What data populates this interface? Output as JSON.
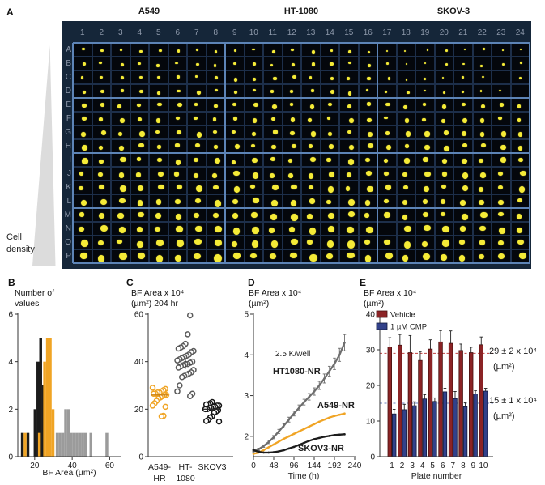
{
  "figure": {
    "panel_a": {
      "label": "A",
      "cell_line_titles": [
        "A549",
        "HT-1080",
        "SKOV-3"
      ],
      "cell_density_lines": [
        "Cell",
        "density"
      ],
      "plate": {
        "columns": [
          "1",
          "2",
          "3",
          "4",
          "5",
          "6",
          "7",
          "8",
          "9",
          "10",
          "11",
          "12",
          "13",
          "14",
          "15",
          "16",
          "17",
          "18",
          "19",
          "20",
          "21",
          "22",
          "23",
          "24"
        ],
        "rows": [
          "A",
          "B",
          "C",
          "D",
          "E",
          "F",
          "G",
          "H",
          "I",
          "J",
          "K",
          "L",
          "M",
          "N",
          "O",
          "P"
        ],
        "row_dot_radius": [
          1.7,
          1.9,
          2.0,
          2.1,
          2.5,
          2.6,
          2.7,
          2.8,
          3.1,
          3.2,
          3.3,
          3.4,
          3.7,
          3.8,
          3.9,
          4.1
        ],
        "missing_wells": [
          "C23",
          "D24",
          "N17"
        ],
        "col_group_size": 8,
        "row_group_size": 4,
        "colors": {
          "plate_bg": "#152639",
          "well_bg": "#04070c",
          "well_border": "#1d2f4a",
          "separator": "#5d84b6",
          "spheroid": "#f5eb37",
          "header_text": "#8e99ab"
        }
      }
    },
    "panel_labels": {
      "b": "B",
      "c": "C",
      "d": "D",
      "e": "E"
    }
  },
  "chart_data": [
    {
      "panel": "B",
      "type": "bar",
      "subtype": "histogram",
      "title_lines": [
        "Number of",
        "values"
      ],
      "xlabel": "BF Area (µm²)",
      "xlim": [
        11,
        65
      ],
      "ylim": [
        0,
        6
      ],
      "xticks": [
        20,
        40,
        60
      ],
      "yticks": [
        0,
        2,
        4,
        6
      ],
      "bin_width": 1.5,
      "series": [
        {
          "name": "HT-1080",
          "color": "#9b9b9b",
          "bins": [
            [
              32,
              1
            ],
            [
              33.5,
              1
            ],
            [
              35,
              1
            ],
            [
              36.5,
              2
            ],
            [
              38,
              2
            ],
            [
              39.5,
              1
            ],
            [
              41,
              1
            ],
            [
              42.5,
              1
            ],
            [
              44,
              1
            ],
            [
              45.5,
              1
            ],
            [
              47,
              1
            ],
            [
              50,
              1
            ],
            [
              58.5,
              1
            ]
          ]
        },
        {
          "name": "SKOV3",
          "color": "#1b1b1b",
          "bins": [
            [
              13.4,
              1
            ],
            [
              16.4,
              1
            ],
            [
              20.2,
              2
            ],
            [
              21.7,
              4
            ],
            [
              23.2,
              5
            ],
            [
              24.7,
              3
            ]
          ]
        },
        {
          "name": "A549",
          "color": "#f0a424",
          "bins": [
            [
              14.9,
              1
            ],
            [
              22.5,
              1
            ],
            [
              25.3,
              4
            ],
            [
              26.8,
              5
            ],
            [
              28.3,
              5
            ],
            [
              29.8,
              2
            ]
          ]
        }
      ]
    },
    {
      "panel": "C",
      "type": "scatter",
      "subtype": "dotplot",
      "title_lines": [
        "BF Area x 10⁴",
        "(µm²) 204 hr"
      ],
      "ylim": [
        0,
        60
      ],
      "yticks": [
        0,
        20,
        40,
        60
      ],
      "groups": [
        {
          "name_lines": [
            "A549-",
            "HR"
          ],
          "color": "#f0a424",
          "mean": 26,
          "err": 1,
          "values": [
            29,
            28.5,
            28,
            27.5,
            27,
            27,
            26.5,
            26.5,
            26,
            26,
            25.5,
            25,
            24.5,
            23.5,
            22.5,
            21.5,
            21,
            17.2,
            17
          ]
        },
        {
          "name_lines": [
            "HT-",
            "1080"
          ],
          "color": "#5a5a5a",
          "mean": 39,
          "err": 2,
          "values": [
            59.5,
            51.5,
            47.5,
            46.5,
            46,
            45.5,
            44.5,
            44,
            43,
            42.5,
            42,
            41.5,
            41,
            40.5,
            40,
            39.5,
            39,
            39,
            38.5,
            38,
            37.5,
            36.5,
            35.5,
            35,
            34.5,
            34,
            33.5,
            30,
            27.5,
            26.5,
            25.5
          ]
        },
        {
          "name_lines": [
            "SKOV3"
          ],
          "color": "#141414",
          "mean": 20,
          "err": 1,
          "values": [
            23,
            22.5,
            22,
            22,
            21.5,
            21.5,
            21,
            21,
            20.5,
            20.5,
            20,
            20,
            19.5,
            19,
            18.5,
            17,
            16.5,
            15.5,
            15,
            14.8
          ]
        }
      ]
    },
    {
      "panel": "D",
      "type": "line",
      "title_lines": [
        "BF Area x 10⁴",
        "(µm²)"
      ],
      "xlabel": "Time (h)",
      "annotation": "2.5 K/well",
      "xlim": [
        0,
        240
      ],
      "ylim": [
        1.5,
        5
      ],
      "xticks": [
        0,
        48,
        96,
        144,
        192,
        240
      ],
      "yticks": [
        2,
        3,
        4,
        5
      ],
      "x": [
        0,
        12,
        24,
        36,
        48,
        60,
        72,
        84,
        96,
        108,
        120,
        132,
        144,
        156,
        168,
        180,
        192,
        204,
        216
      ],
      "series": [
        {
          "name": "HT1080-NR",
          "color": "#6e6e6e",
          "y": [
            1.65,
            1.68,
            1.76,
            1.86,
            1.98,
            2.12,
            2.26,
            2.41,
            2.56,
            2.7,
            2.84,
            2.97,
            3.1,
            3.25,
            3.42,
            3.6,
            3.78,
            4.0,
            4.3
          ],
          "err": [
            0.03,
            0.03,
            0.03,
            0.04,
            0.04,
            0.05,
            0.05,
            0.06,
            0.06,
            0.07,
            0.07,
            0.08,
            0.09,
            0.1,
            0.11,
            0.12,
            0.14,
            0.16,
            0.2
          ]
        },
        {
          "name": "A549-NR",
          "color": "#f0a424",
          "y": [
            1.57,
            1.6,
            1.66,
            1.73,
            1.8,
            1.87,
            1.94,
            2.0,
            2.06,
            2.12,
            2.18,
            2.24,
            2.3,
            2.36,
            2.41,
            2.46,
            2.5,
            2.53,
            2.56
          ]
        },
        {
          "name": "SKOV3-NR",
          "color": "#1c1c1c",
          "y": [
            1.66,
            1.62,
            1.6,
            1.6,
            1.61,
            1.63,
            1.66,
            1.7,
            1.74,
            1.79,
            1.84,
            1.89,
            1.93,
            1.96,
            1.99,
            2.01,
            2.03,
            2.04,
            2.05
          ]
        }
      ]
    },
    {
      "panel": "E",
      "type": "bar",
      "title_lines": [
        "BF Area x 10⁴",
        "(µm²)"
      ],
      "xlabel": "Plate number",
      "categories": [
        "1",
        "2",
        "3",
        "4",
        "5",
        "6",
        "7",
        "8",
        "9",
        "10"
      ],
      "ylim": [
        0,
        40
      ],
      "yticks": [
        0,
        10,
        20,
        30,
        40
      ],
      "series": [
        {
          "name": "Vehicle",
          "color": "#8b2325",
          "edge": "#45100f",
          "values": [
            30.8,
            31.3,
            29.2,
            27,
            30.2,
            32.2,
            31.8,
            29.8,
            29.2,
            31.4
          ],
          "errors": [
            2.6,
            3,
            4.8,
            2.5,
            2.6,
            3.2,
            3.5,
            1.8,
            1.5,
            2.2
          ]
        },
        {
          "name": "1 µM CMP",
          "color": "#32418a",
          "edge": "#10173a",
          "values": [
            12,
            13.2,
            14.3,
            16.2,
            15.5,
            18.2,
            16.3,
            14,
            17.6,
            18.4
          ],
          "errors": [
            1.3,
            1.5,
            1.1,
            1.2,
            1,
            1,
            2,
            1.1,
            0.9,
            0.8
          ]
        }
      ],
      "ref_lines": [
        {
          "value": 29,
          "color": "#c04040",
          "label_lines": [
            "29 ± 2 x 10⁴",
            "(µm²)"
          ]
        },
        {
          "value": 15,
          "color": "#6b7fc0",
          "label_lines": [
            "15 ± 1 x 10⁴",
            "(µm²)"
          ]
        }
      ],
      "legend": [
        "Vehicle",
        "1 µM CMP"
      ]
    }
  ]
}
